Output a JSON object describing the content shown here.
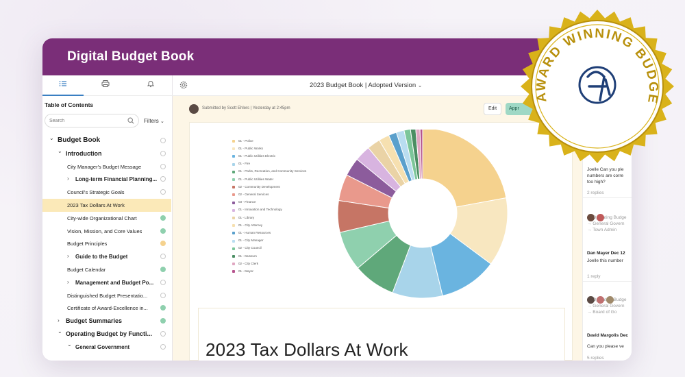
{
  "app": {
    "title": "Digital Budget Book"
  },
  "sidebar": {
    "tabs": [
      {
        "name": "list-icon",
        "active": true
      },
      {
        "name": "print-icon",
        "active": false
      },
      {
        "name": "bell-icon",
        "active": false
      }
    ],
    "toc_title": "Table of Contents",
    "search_placeholder": "Search",
    "filters_label": "Filters",
    "items": [
      {
        "label": "Budget Book",
        "level": 0,
        "chevron": "open",
        "status": "empty"
      },
      {
        "label": "Introduction",
        "level": 1,
        "chevron": "open",
        "status": "empty"
      },
      {
        "label": "City Manager's Budget Message",
        "level": 2,
        "status": "empty"
      },
      {
        "label": "Long-term Financial Planning...",
        "level": 2,
        "chevron": "closed",
        "bold": true,
        "status": "empty"
      },
      {
        "label": "Council's Strategic Goals",
        "level": 2,
        "status": "empty"
      },
      {
        "label": "2023 Tax Dollars At Work",
        "level": 2,
        "status": "none",
        "selected": true
      },
      {
        "label": "City-wide Organizational Chart",
        "level": 2,
        "status": "green"
      },
      {
        "label": "Vision, Mission, and Core Values",
        "level": 2,
        "status": "green"
      },
      {
        "label": "Budget Principles",
        "level": 2,
        "status": "yellow"
      },
      {
        "label": "Guide to the Budget",
        "level": 2,
        "chevron": "closed",
        "bold": true,
        "status": "empty"
      },
      {
        "label": "Budget Calendar",
        "level": 2,
        "status": "green"
      },
      {
        "label": "Management and Budget Po...",
        "level": 2,
        "chevron": "closed",
        "bold": true,
        "status": "empty"
      },
      {
        "label": "Distinguished Budget Presentatio...",
        "level": 2,
        "status": "empty"
      },
      {
        "label": "Certificate of Award-Excellence in...",
        "level": 2,
        "status": "green"
      },
      {
        "label": "Budget Summaries",
        "level": 1,
        "chevron": "closed",
        "status": "green"
      },
      {
        "label": "Operating Budget by Functi...",
        "level": 1,
        "chevron": "open",
        "status": "empty"
      },
      {
        "label": "General Government",
        "level": 2,
        "chevron": "open",
        "bold": true,
        "status": "empty"
      }
    ]
  },
  "document": {
    "title": "2023 Budget Book | Adopted Version",
    "submitted": "Submitted by Scott Ehlers  |  Yesterday at 2:45pm",
    "edit_label": "Edit",
    "approve_label": "Appr",
    "section_title": "2023 Tax Dollars At Work"
  },
  "chart_data": {
    "type": "pie",
    "donut": true,
    "legend_position": "left",
    "labels": [
      "01 - Police",
      "01 - Public Works",
      "01 - Public Utilities Electric",
      "01 - Fire",
      "01 - Parks, Recreation, and Community Services",
      "01 - Public Utilities Water",
      "02 - Community Development",
      "02 - General Services",
      "03 - Finance",
      "01 - Innovation and Technology",
      "01 - Library",
      "01 - City Attorney",
      "01 - Human Resources",
      "01 - City Manager",
      "02 - City Council",
      "01 - Museum",
      "02 - City Clerk",
      "01 - Mayor"
    ],
    "values": [
      22,
      13,
      11,
      9.5,
      8,
      7.5,
      6,
      5,
      3.5,
      3,
      2.5,
      2,
      1.5,
      1.5,
      1.2,
      1,
      0.8,
      0.5
    ],
    "colors": [
      "#f5d28e",
      "#f8e7c0",
      "#6ab4e0",
      "#a8d4ea",
      "#5fa87a",
      "#8fd0ae",
      "#c67565",
      "#e9998c",
      "#8c5c9c",
      "#d8b4e0",
      "#ead3a6",
      "#f6e0b0",
      "#5aa0cc",
      "#b9ddf0",
      "#7cc69a",
      "#4a8e63",
      "#e0a7c2",
      "#b6548e"
    ]
  },
  "comments": {
    "snippets": [
      {
        "text": "Joelle Can you ple",
        "muted": false
      },
      {
        "text": "numbers are corre",
        "muted": false
      },
      {
        "text": "too high?",
        "muted": false
      },
      {
        "text": "2 replies",
        "muted": true
      },
      {
        "text": "→ Operating Budge",
        "muted": true
      },
      {
        "text": "→ General Govern",
        "muted": true
      },
      {
        "text": "→ Town Admin",
        "muted": true
      },
      {
        "text": "Dan Mayer  Dec 12",
        "muted": false,
        "name": true
      },
      {
        "text": "Joelle this number",
        "muted": false
      },
      {
        "text": "1 reply",
        "muted": true
      },
      {
        "text": "→ Operating Budge",
        "muted": true
      },
      {
        "text": "→ General Govern",
        "muted": true
      },
      {
        "text": "→ Board of Go",
        "muted": true
      },
      {
        "text": "David Margolis  Dec",
        "muted": false,
        "name": true
      },
      {
        "text": "Can you please ve",
        "muted": false
      },
      {
        "text": "5 replies",
        "muted": true
      }
    ]
  },
  "badge": {
    "text": "AWARD WINNING BUDGET BOOK",
    "colors": {
      "gold": "#d9b21a",
      "gold_dark": "#b8900c",
      "navy": "#1f3f77"
    }
  },
  "colors": {
    "brand": "#7a2e78",
    "selected": "#fbe9b8",
    "main_bg": "#fdf6e6",
    "accent": "#3a7fc2",
    "status_green": "#8fd0ae",
    "status_yellow": "#f5d28e"
  }
}
